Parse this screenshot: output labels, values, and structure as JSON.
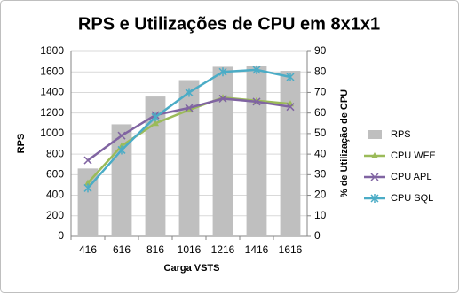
{
  "chart_data": {
    "type": "bar-line",
    "title": "RPS e Utilizações de CPU em 8x1x1",
    "x_label": "Carga VSTS",
    "y_label": "RPS",
    "y2_label": "% de Utilização de CPU",
    "categories": [
      "416",
      "616",
      "816",
      "1016",
      "1216",
      "1416",
      "1616"
    ],
    "series": [
      {
        "name": "RPS",
        "type": "bar",
        "color": "#bfbfbf",
        "values": [
          660,
          1090,
          1360,
          1520,
          1650,
          1660,
          1610
        ]
      },
      {
        "name": "CPU WFE",
        "type": "line",
        "marker": "triangle",
        "axis": "y2",
        "color": "#9bbb59",
        "values": [
          26,
          44,
          55,
          61.5,
          67.5,
          66,
          64.5
        ]
      },
      {
        "name": "CPU APL",
        "type": "line",
        "marker": "x",
        "axis": "y2",
        "color": "#8064a2",
        "values": [
          37,
          49,
          59,
          62.5,
          67,
          65.5,
          63
        ]
      },
      {
        "name": "CPU SQL",
        "type": "line",
        "marker": "star",
        "axis": "y2",
        "color": "#4bacc6",
        "values": [
          23.5,
          42,
          58,
          70,
          80,
          81,
          77.5
        ]
      }
    ],
    "ylim": [
      0,
      1800
    ],
    "yticks": [
      0,
      200,
      400,
      600,
      800,
      1000,
      1200,
      1400,
      1600,
      1800
    ],
    "y2lim": [
      0,
      90
    ],
    "y2ticks": [
      0,
      10,
      20,
      30,
      40,
      50,
      60,
      70,
      80,
      90
    ],
    "grid": true,
    "legend": "right"
  }
}
